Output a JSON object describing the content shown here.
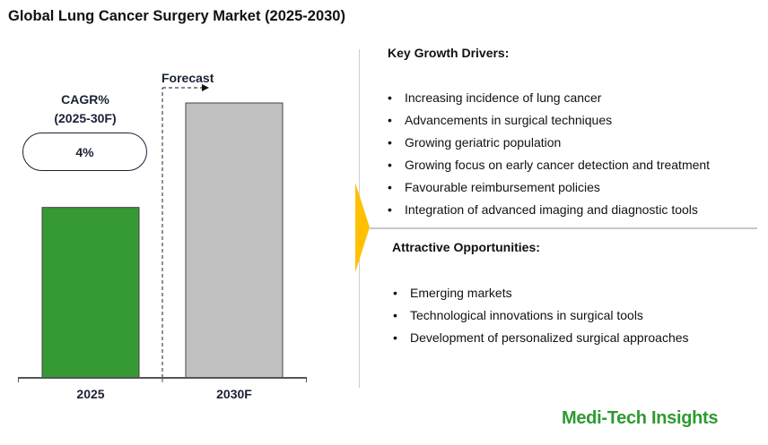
{
  "title": "Global Lung Cancer Surgery Market (2025-2030)",
  "chart_data": {
    "type": "bar",
    "categories": [
      "2025",
      "2030F"
    ],
    "values": [
      62,
      100
    ],
    "value_note_scale": "relative",
    "colors": [
      "#359934",
      "#c0c0c0"
    ],
    "forecast_label": "Forecast",
    "cagr": {
      "label_line1": "CAGR%",
      "label_line2": "(2025-30F)",
      "value": "4%"
    },
    "ylim": [
      0,
      100
    ],
    "grid": false
  },
  "drivers": {
    "heading": "Key Growth Drivers:",
    "items": [
      "Increasing incidence of lung cancer",
      "Advancements in surgical techniques",
      "Growing geriatric population",
      "Growing focus on early cancer detection and treatment",
      "Favourable reimbursement policies",
      "Integration of advanced imaging and diagnostic tools"
    ]
  },
  "opportunities": {
    "heading": "Attractive Opportunities:",
    "items": [
      "Emerging markets",
      "Technological innovations in surgical tools",
      "Development of personalized surgical approaches"
    ]
  },
  "bullet": "•",
  "logo": "Medi-Tech Insights",
  "accent_color": "#ffc000"
}
